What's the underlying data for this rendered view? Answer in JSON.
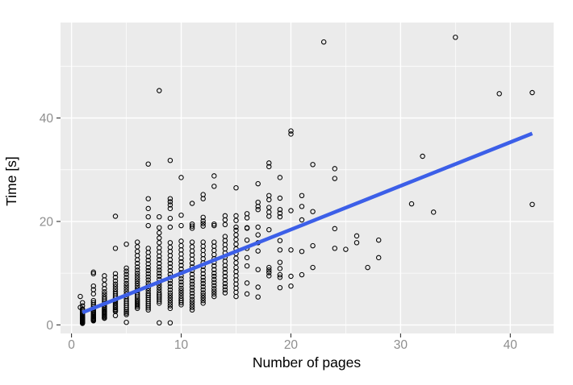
{
  "figure": {
    "kind": "statistical scatter plot with linear trend line",
    "background": "#ffffff"
  },
  "chart_data": {
    "type": "scatter",
    "title": "",
    "xlabel": "Number of pages",
    "ylabel": "Time [s]",
    "xlim": [
      -1.0,
      43.95
    ],
    "ylim": [
      -1.65,
      58.45
    ],
    "x_major_ticks": [
      0,
      10,
      20,
      30,
      40
    ],
    "x_tick_labels": [
      "0",
      "10",
      "20",
      "30",
      "40"
    ],
    "x_minor_ticks": [
      5,
      15,
      25,
      35
    ],
    "y_major_ticks": [
      0,
      20,
      40
    ],
    "y_tick_labels": [
      "0",
      "20",
      "40"
    ],
    "y_minor_ticks": [
      10,
      30,
      50
    ],
    "grid": true,
    "legend_position": "none",
    "panel_bg_color": "#EBEBEB",
    "grid_color": "#FFFFFF",
    "point_color": "#000000",
    "trend_color": "#3C5FE8",
    "tick_mark_color": "#333333",
    "tick_label_color": "#8E8E8E",
    "axis_title_color": "#000000",
    "trend_line": {
      "x1": 1.0,
      "y1": 2.4,
      "x2": 42.0,
      "y2": 37.0
    },
    "columns": [
      {
        "x": 0.8,
        "ys": [
          3.4,
          5.5
        ]
      },
      {
        "x": 1,
        "ys": [
          0.3,
          0.4,
          0.5,
          0.6,
          0.7,
          0.8,
          0.9,
          1.0,
          1.1,
          1.2,
          1.3,
          1.4,
          1.5,
          1.6,
          1.8,
          2.0,
          2.2,
          2.5,
          2.8,
          3.1,
          3.7,
          4.3
        ]
      },
      {
        "x": 2,
        "ys": [
          0.8,
          0.9,
          1.0,
          1.1,
          1.2,
          1.3,
          1.5,
          1.6,
          1.8,
          2.0,
          2.2,
          2.4,
          2.6,
          2.9,
          3.2,
          3.5,
          3.9,
          4.3,
          4.7,
          6.0,
          6.8,
          7.5,
          9.9,
          10.2
        ]
      },
      {
        "x": 3,
        "ys": [
          1.3,
          1.4,
          1.6,
          1.8,
          2.0,
          2.2,
          2.4,
          2.6,
          2.8,
          3.0,
          3.3,
          3.6,
          3.9,
          4.2,
          4.6,
          5.0,
          5.4,
          5.9,
          6.4,
          7.0,
          7.8,
          8.7,
          9.5
        ]
      },
      {
        "x": 4,
        "ys": [
          1.8,
          2.6,
          2.8,
          3.0,
          3.3,
          3.6,
          3.9,
          4.2,
          4.5,
          4.8,
          5.2,
          5.6,
          6.0,
          6.4,
          6.9,
          7.4,
          7.9,
          8.5,
          9.2,
          9.9,
          14.8,
          21.0
        ]
      },
      {
        "x": 5,
        "ys": [
          0.5,
          2.0,
          2.3,
          2.6,
          3.0,
          3.4,
          3.8,
          4.2,
          4.6,
          5.0,
          5.5,
          6.0,
          6.5,
          7.0,
          7.5,
          8.0,
          8.6,
          9.2,
          9.8,
          10.4,
          11.0,
          15.6
        ]
      },
      {
        "x": 6,
        "ys": [
          3.2,
          3.5,
          3.8,
          4.1,
          4.4,
          4.7,
          5.0,
          5.4,
          5.8,
          6.2,
          6.6,
          7.0,
          7.5,
          8.0,
          8.5,
          9.0,
          9.5,
          10.0,
          10.6,
          11.2,
          11.9,
          12.6,
          13.4,
          14.2,
          15.1,
          16.0
        ]
      },
      {
        "x": 7,
        "ys": [
          2.9,
          3.3,
          3.7,
          4.1,
          4.5,
          4.9,
          5.3,
          5.7,
          6.1,
          6.6,
          7.1,
          7.6,
          8.1,
          8.7,
          9.3,
          9.9,
          10.5,
          11.1,
          11.8,
          12.5,
          13.2,
          14.0,
          14.8,
          19.2,
          20.9,
          22.5,
          24.4,
          31.1
        ]
      },
      {
        "x": 8,
        "ys": [
          0.4,
          4.2,
          4.6,
          5.0,
          5.4,
          5.8,
          6.2,
          6.7,
          7.2,
          7.7,
          8.2,
          8.8,
          9.4,
          10.0,
          10.6,
          11.2,
          11.9,
          12.6,
          13.3,
          14.1,
          14.9,
          15.9,
          16.8,
          17.8,
          18.8,
          20.9,
          45.3
        ]
      },
      {
        "x": 9,
        "ys": [
          0.4,
          3.2,
          3.7,
          4.2,
          4.7,
          5.2,
          5.7,
          6.2,
          6.8,
          7.4,
          8.0,
          8.6,
          9.2,
          9.8,
          10.5,
          11.2,
          11.9,
          12.6,
          13.4,
          14.2,
          15.0,
          15.9,
          18.9,
          20.6,
          22.5,
          23.2,
          23.8,
          24.4,
          31.8
        ]
      },
      {
        "x": 10,
        "ys": [
          3.9,
          4.3,
          4.7,
          5.1,
          5.6,
          6.1,
          6.6,
          7.1,
          7.7,
          8.3,
          8.9,
          9.5,
          10.1,
          10.8,
          11.5,
          12.2,
          12.9,
          13.7,
          14.5,
          15.3,
          16.2,
          19.2,
          21.2,
          28.5
        ]
      },
      {
        "x": 11,
        "ys": [
          2.9,
          3.4,
          3.9,
          4.4,
          4.9,
          5.5,
          6.1,
          6.7,
          7.3,
          7.9,
          8.5,
          9.1,
          9.8,
          10.5,
          11.2,
          11.9,
          12.7,
          13.5,
          14.3,
          15.1,
          16.0,
          18.7,
          19.1,
          19.5,
          23.5
        ]
      },
      {
        "x": 12,
        "ys": [
          4.2,
          4.7,
          5.2,
          5.7,
          6.2,
          6.8,
          7.4,
          8.0,
          8.6,
          9.2,
          9.9,
          10.6,
          11.3,
          12.0,
          12.8,
          13.6,
          14.4,
          15.2,
          16.0,
          19.1,
          19.6,
          20.1,
          20.8,
          24.4,
          25.2
        ]
      },
      {
        "x": 13,
        "ys": [
          5.5,
          6.0,
          6.5,
          7.0,
          7.6,
          8.2,
          8.8,
          9.4,
          10.0,
          10.7,
          11.4,
          12.1,
          12.8,
          13.6,
          14.4,
          15.2,
          16.0,
          19.2,
          19.5,
          26.8,
          28.8
        ]
      },
      {
        "x": 14,
        "ys": [
          6.2,
          6.8,
          7.4,
          8.0,
          8.7,
          9.4,
          10.1,
          10.8,
          11.5,
          12.3,
          13.1,
          13.9,
          14.7,
          15.5,
          16.3,
          17.1,
          19.4,
          20.3,
          21.1
        ]
      },
      {
        "x": 15,
        "ys": [
          5.5,
          6.3,
          7.1,
          7.9,
          8.7,
          9.5,
          10.3,
          11.1,
          12.0,
          12.9,
          13.8,
          14.7,
          15.6,
          16.5,
          17.4,
          18.3,
          18.9,
          20.2,
          21.1,
          26.5
        ]
      },
      {
        "x": 16,
        "ys": [
          6.0,
          8.1,
          11.4,
          13.0,
          14.8,
          16.4,
          18.7,
          18.8,
          20.7,
          21.5
        ]
      },
      {
        "x": 17,
        "ys": [
          5.4,
          7.3,
          10.7,
          14.3,
          15.9,
          17.4,
          18.9,
          22.3,
          22.9,
          23.7,
          27.3
        ]
      },
      {
        "x": 18,
        "ys": [
          9.5,
          10.1,
          10.6,
          11.1,
          18.4,
          21.0,
          21.8,
          22.7,
          24.2,
          25.0,
          30.6,
          31.3
        ]
      },
      {
        "x": 19,
        "ys": [
          7.2,
          9.2,
          9.7,
          10.9,
          12.1,
          14.5,
          16.3,
          20.9,
          21.6,
          22.3,
          24.5,
          28.5
        ]
      },
      {
        "x": 20,
        "ys": [
          7.5,
          9.4,
          14.5,
          22.1,
          36.9,
          37.5
        ]
      },
      {
        "x": 21,
        "ys": [
          9.7,
          14.2,
          20.3,
          22.9,
          25.0
        ]
      },
      {
        "x": 22,
        "ys": [
          11.1,
          15.3,
          21.9,
          31.0
        ]
      },
      {
        "x": 23,
        "ys": [
          54.7
        ]
      },
      {
        "x": 24,
        "ys": [
          14.8,
          18.6,
          28.3,
          30.2
        ]
      },
      {
        "x": 25,
        "ys": [
          14.6
        ]
      },
      {
        "x": 26,
        "ys": [
          15.9,
          17.2
        ]
      },
      {
        "x": 27,
        "ys": [
          11.1
        ]
      },
      {
        "x": 28,
        "ys": [
          13.0,
          16.4
        ]
      },
      {
        "x": 31,
        "ys": [
          23.4
        ]
      },
      {
        "x": 32,
        "ys": [
          32.6
        ]
      },
      {
        "x": 33,
        "ys": [
          21.8
        ]
      },
      {
        "x": 35,
        "ys": [
          55.6
        ]
      },
      {
        "x": 39,
        "ys": [
          44.7
        ]
      },
      {
        "x": 42,
        "ys": [
          23.3,
          44.9
        ]
      }
    ]
  }
}
